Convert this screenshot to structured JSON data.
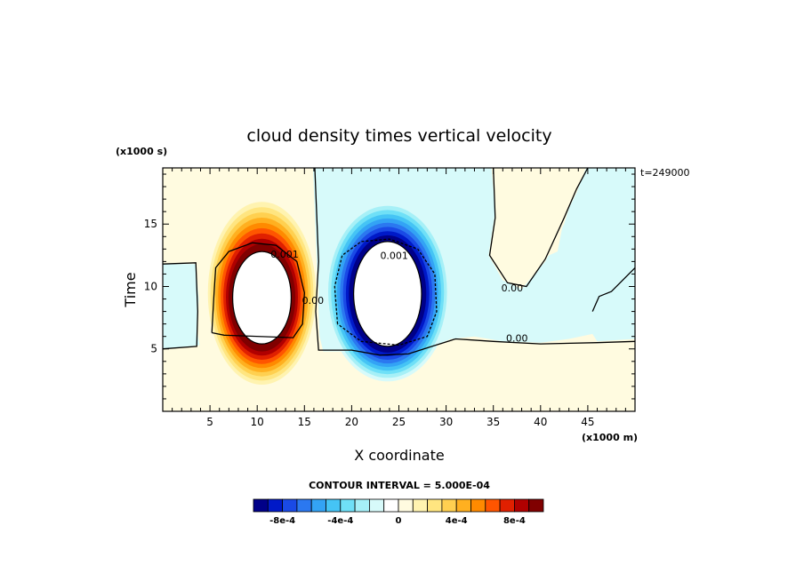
{
  "chart_data": {
    "type": "heatmap",
    "title": "cloud density times vertical velocity",
    "xlabel": "X coordinate",
    "ylabel": "Time",
    "x_units": "(x1000 m)",
    "y_units": "(x1000 s)",
    "time_label": "t=249000",
    "xlim": [
      0,
      50
    ],
    "ylim": [
      0,
      19.5
    ],
    "x_ticks": [
      5,
      10,
      15,
      20,
      25,
      30,
      35,
      40,
      45
    ],
    "y_ticks": [
      5,
      10,
      15
    ],
    "contour_interval_label": "CONTOUR INTERVAL = 5.000E-04",
    "contour_labels": [
      {
        "text": "0.001",
        "x": 12.9,
        "y": 12.3
      },
      {
        "text": "0.00",
        "x": 15.9,
        "y": 8.6
      },
      {
        "text": "0.001",
        "x": 24.5,
        "y": 12.2
      },
      {
        "text": "0.00",
        "x": 37.0,
        "y": 9.6
      },
      {
        "text": "0.00",
        "x": 37.5,
        "y": 5.6
      }
    ],
    "features": [
      {
        "name": "positive-updraft-cell",
        "sign": 1,
        "cx": 10.5,
        "cy": 9.5,
        "rx": 6.0,
        "ry": 7.7,
        "core_rx": 3.1,
        "core_ry": 3.7,
        "core_cy": 9.1
      },
      {
        "name": "negative-downdraft-cell",
        "sign": -1,
        "cx": 23.8,
        "cy": 9.6,
        "rx": 6.6,
        "ry": 7.2,
        "core_rx": 3.6,
        "core_ry": 4.2,
        "core_cy": 9.4
      }
    ],
    "colorbar": {
      "levels": [
        -0.0009,
        -0.0008,
        -0.0007,
        -0.0006,
        -0.0005,
        -0.0004,
        -0.0003,
        -0.0002,
        -0.0001,
        0,
        0.0001,
        0.0002,
        0.0003,
        0.0004,
        0.0005,
        0.0006,
        0.0007,
        0.0008,
        0.0009
      ],
      "colors": [
        "#000088",
        "#0019c8",
        "#1a4ae6",
        "#2b78f0",
        "#33a3f5",
        "#45c4f5",
        "#6fe0f7",
        "#a6f0f7",
        "#d7fafa",
        "#ffffff",
        "#fffbe0",
        "#fff3b0",
        "#ffe580",
        "#ffd050",
        "#ffb020",
        "#ff8a00",
        "#ff5500",
        "#e02000",
        "#b00000",
        "#800000"
      ],
      "tick_labels": [
        "-8e-4",
        "-4e-4",
        "0",
        "4e-4",
        "8e-4"
      ],
      "tick_values": [
        -0.0008,
        -0.0004,
        0,
        0.0004,
        0.0008
      ]
    }
  }
}
